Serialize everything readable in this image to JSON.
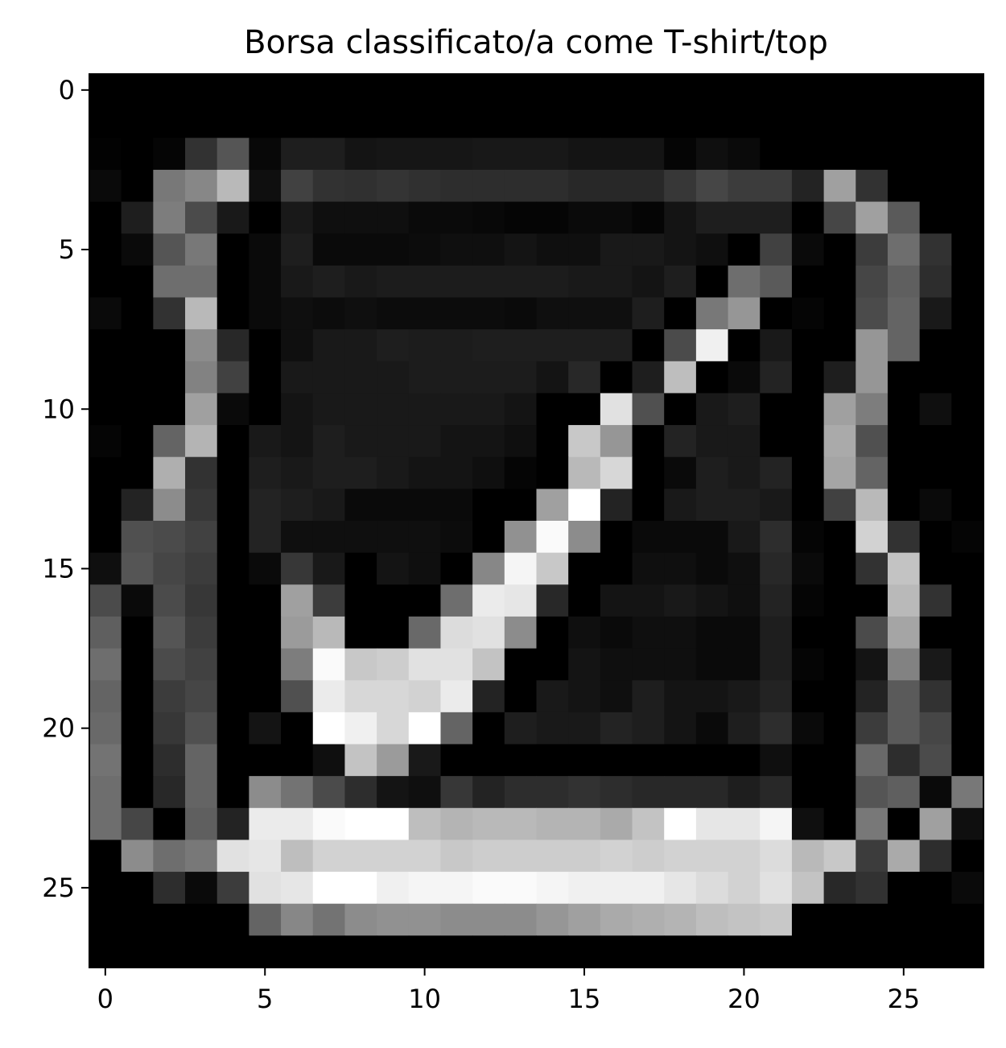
{
  "chart_data": {
    "type": "heatmap",
    "title": "Borsa classificato/a come T-shirt/top",
    "xlabel": "",
    "ylabel": "",
    "colormap": "gray",
    "value_range": [
      0,
      255
    ],
    "x_ticks": [
      0,
      5,
      10,
      15,
      20,
      25
    ],
    "y_ticks": [
      0,
      5,
      10,
      15,
      20,
      25
    ],
    "x_tick_labels": [
      "0",
      "5",
      "10",
      "15",
      "20",
      "25"
    ],
    "y_tick_labels": [
      "0",
      "5",
      "10",
      "15",
      "20",
      "25"
    ],
    "grid": false,
    "rows": 28,
    "cols": 28,
    "pixels": [
      [
        0,
        0,
        0,
        0,
        0,
        0,
        0,
        0,
        0,
        0,
        0,
        0,
        0,
        0,
        0,
        0,
        0,
        0,
        0,
        0,
        0,
        0,
        0,
        0,
        0,
        0,
        0,
        0
      ],
      [
        0,
        0,
        0,
        0,
        0,
        0,
        0,
        0,
        0,
        0,
        0,
        0,
        0,
        0,
        0,
        0,
        0,
        0,
        0,
        0,
        0,
        0,
        0,
        0,
        0,
        0,
        0,
        0
      ],
      [
        2,
        0,
        5,
        50,
        85,
        8,
        30,
        30,
        20,
        22,
        22,
        22,
        24,
        24,
        24,
        20,
        20,
        20,
        5,
        15,
        10,
        0,
        0,
        0,
        0,
        0,
        0,
        0
      ],
      [
        10,
        0,
        120,
        135,
        185,
        15,
        65,
        50,
        48,
        52,
        48,
        45,
        45,
        45,
        45,
        40,
        40,
        40,
        55,
        70,
        60,
        60,
        35,
        160,
        50,
        0,
        0,
        0
      ],
      [
        0,
        30,
        125,
        75,
        25,
        0,
        25,
        15,
        15,
        15,
        10,
        10,
        8,
        5,
        5,
        10,
        10,
        5,
        20,
        30,
        30,
        30,
        0,
        70,
        160,
        90,
        0,
        0
      ],
      [
        0,
        10,
        85,
        120,
        0,
        10,
        30,
        10,
        10,
        10,
        12,
        15,
        15,
        20,
        15,
        15,
        25,
        25,
        20,
        15,
        0,
        65,
        10,
        0,
        60,
        110,
        50,
        0
      ],
      [
        0,
        0,
        110,
        110,
        0,
        10,
        25,
        30,
        25,
        28,
        28,
        28,
        28,
        28,
        28,
        25,
        25,
        20,
        30,
        0,
        110,
        90,
        0,
        0,
        70,
        95,
        45,
        0
      ],
      [
        10,
        0,
        50,
        185,
        0,
        10,
        15,
        12,
        15,
        12,
        12,
        12,
        12,
        10,
        15,
        15,
        15,
        30,
        0,
        120,
        150,
        0,
        5,
        0,
        75,
        100,
        25,
        0
      ],
      [
        0,
        0,
        0,
        140,
        40,
        0,
        15,
        25,
        25,
        30,
        28,
        28,
        30,
        30,
        30,
        30,
        30,
        0,
        75,
        240,
        0,
        25,
        0,
        0,
        150,
        100,
        0,
        0
      ],
      [
        0,
        0,
        0,
        130,
        65,
        0,
        25,
        25,
        25,
        25,
        28,
        28,
        28,
        28,
        20,
        40,
        0,
        30,
        190,
        0,
        10,
        35,
        0,
        30,
        150,
        0,
        0,
        0
      ],
      [
        0,
        0,
        0,
        160,
        10,
        0,
        20,
        25,
        25,
        25,
        25,
        25,
        25,
        20,
        0,
        0,
        225,
        80,
        0,
        25,
        30,
        0,
        0,
        160,
        125,
        0,
        15,
        0
      ],
      [
        5,
        0,
        100,
        180,
        0,
        25,
        20,
        30,
        25,
        25,
        25,
        20,
        20,
        15,
        0,
        200,
        150,
        0,
        35,
        25,
        25,
        0,
        0,
        170,
        80,
        0,
        0,
        0
      ],
      [
        0,
        0,
        175,
        50,
        0,
        30,
        25,
        30,
        30,
        25,
        20,
        20,
        15,
        5,
        0,
        185,
        215,
        0,
        10,
        30,
        25,
        35,
        0,
        165,
        100,
        0,
        0,
        0
      ],
      [
        0,
        35,
        140,
        55,
        0,
        35,
        30,
        25,
        10,
        10,
        10,
        10,
        0,
        0,
        160,
        255,
        35,
        0,
        25,
        30,
        30,
        25,
        0,
        65,
        185,
        0,
        10,
        0
      ],
      [
        0,
        80,
        75,
        65,
        0,
        35,
        15,
        15,
        15,
        15,
        15,
        12,
        0,
        145,
        250,
        140,
        0,
        10,
        10,
        10,
        25,
        45,
        5,
        0,
        210,
        50,
        0,
        5
      ],
      [
        15,
        85,
        70,
        60,
        0,
        10,
        55,
        25,
        0,
        20,
        15,
        0,
        135,
        245,
        200,
        0,
        0,
        15,
        15,
        10,
        15,
        40,
        10,
        0,
        50,
        195,
        0,
        0
      ],
      [
        75,
        10,
        75,
        55,
        0,
        0,
        160,
        60,
        0,
        0,
        0,
        110,
        235,
        230,
        40,
        0,
        20,
        20,
        25,
        20,
        15,
        35,
        5,
        0,
        0,
        185,
        50,
        0
      ],
      [
        95,
        0,
        85,
        60,
        0,
        0,
        155,
        185,
        0,
        0,
        105,
        220,
        225,
        140,
        0,
        15,
        10,
        15,
        15,
        10,
        10,
        30,
        0,
        0,
        75,
        165,
        0,
        0
      ],
      [
        110,
        0,
        75,
        65,
        0,
        0,
        125,
        250,
        200,
        205,
        225,
        225,
        195,
        0,
        0,
        20,
        15,
        15,
        15,
        10,
        10,
        30,
        5,
        0,
        20,
        130,
        25,
        0
      ],
      [
        100,
        0,
        60,
        70,
        0,
        0,
        80,
        235,
        215,
        215,
        210,
        235,
        35,
        0,
        25,
        20,
        15,
        30,
        20,
        20,
        25,
        35,
        0,
        0,
        35,
        90,
        50,
        0
      ],
      [
        105,
        0,
        55,
        80,
        0,
        20,
        0,
        255,
        240,
        215,
        255,
        100,
        0,
        30,
        25,
        25,
        35,
        30,
        20,
        10,
        30,
        45,
        10,
        0,
        60,
        90,
        70,
        0
      ],
      [
        115,
        0,
        45,
        100,
        0,
        0,
        0,
        15,
        195,
        155,
        25,
        0,
        0,
        0,
        0,
        0,
        0,
        0,
        0,
        0,
        0,
        15,
        0,
        0,
        105,
        45,
        75,
        0
      ],
      [
        110,
        0,
        40,
        100,
        0,
        140,
        115,
        75,
        45,
        20,
        15,
        55,
        35,
        45,
        45,
        50,
        45,
        40,
        40,
        40,
        30,
        40,
        0,
        0,
        85,
        95,
        10,
        120
      ],
      [
        110,
        70,
        0,
        95,
        35,
        235,
        235,
        250,
        255,
        255,
        190,
        180,
        185,
        185,
        180,
        180,
        170,
        195,
        255,
        230,
        230,
        245,
        15,
        0,
        120,
        0,
        160,
        15
      ],
      [
        0,
        140,
        110,
        120,
        225,
        230,
        190,
        210,
        210,
        210,
        210,
        200,
        205,
        205,
        205,
        205,
        210,
        205,
        210,
        210,
        210,
        220,
        185,
        200,
        60,
        170,
        45,
        0
      ],
      [
        0,
        0,
        45,
        10,
        60,
        225,
        230,
        255,
        255,
        240,
        245,
        245,
        250,
        250,
        245,
        240,
        240,
        240,
        230,
        220,
        210,
        225,
        195,
        40,
        50,
        0,
        0,
        10
      ],
      [
        0,
        0,
        0,
        0,
        0,
        100,
        135,
        115,
        140,
        145,
        145,
        140,
        140,
        140,
        150,
        160,
        170,
        175,
        180,
        190,
        195,
        200,
        0,
        0,
        0,
        0,
        0,
        0
      ],
      [
        0,
        0,
        0,
        0,
        0,
        0,
        0,
        0,
        0,
        0,
        0,
        0,
        0,
        0,
        0,
        0,
        0,
        0,
        0,
        0,
        0,
        0,
        0,
        0,
        0,
        0,
        0,
        0
      ]
    ]
  }
}
